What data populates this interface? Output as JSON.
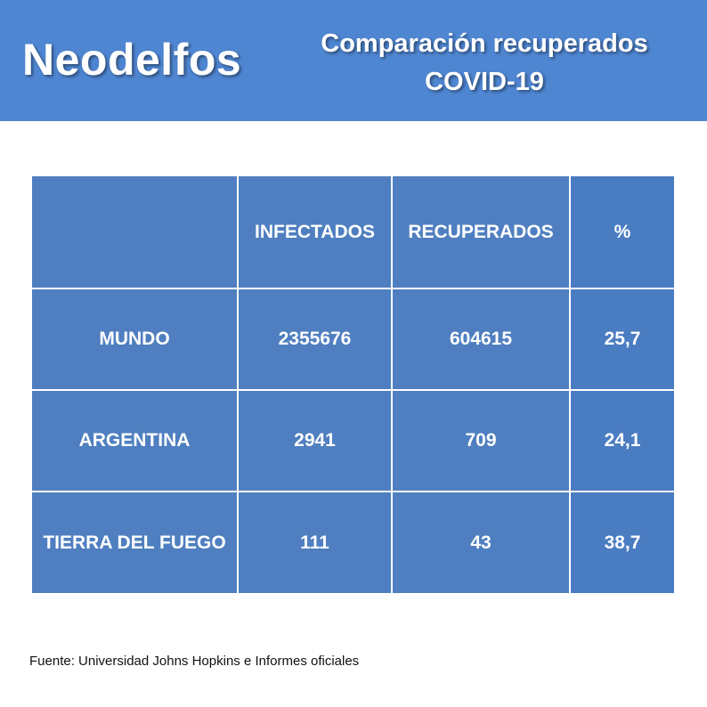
{
  "header": {
    "brand": "Neodelfos",
    "subtitle_line1": "Comparación recuperados",
    "subtitle_line2": "COVID-19"
  },
  "table": {
    "columns": [
      "",
      "INFECTADOS",
      "RECUPERADOS",
      "%"
    ],
    "rows": [
      {
        "region": "MUNDO",
        "infectados": "2355676",
        "recuperados": "604615",
        "porcentaje": "25,7"
      },
      {
        "region": "ARGENTINA",
        "infectados": "2941",
        "recuperados": "709",
        "porcentaje": "24,1"
      },
      {
        "region": "TIERRA DEL FUEGO",
        "infectados": "111",
        "recuperados": "43",
        "porcentaje": "38,7"
      }
    ]
  },
  "footer": {
    "source": "Fuente: Universidad Johns Hopkins e Informes oficiales"
  },
  "colors": {
    "header_band": "#4f86d2",
    "table_cell": "#4f7fc0",
    "text_on_blue": "#ffffff"
  }
}
